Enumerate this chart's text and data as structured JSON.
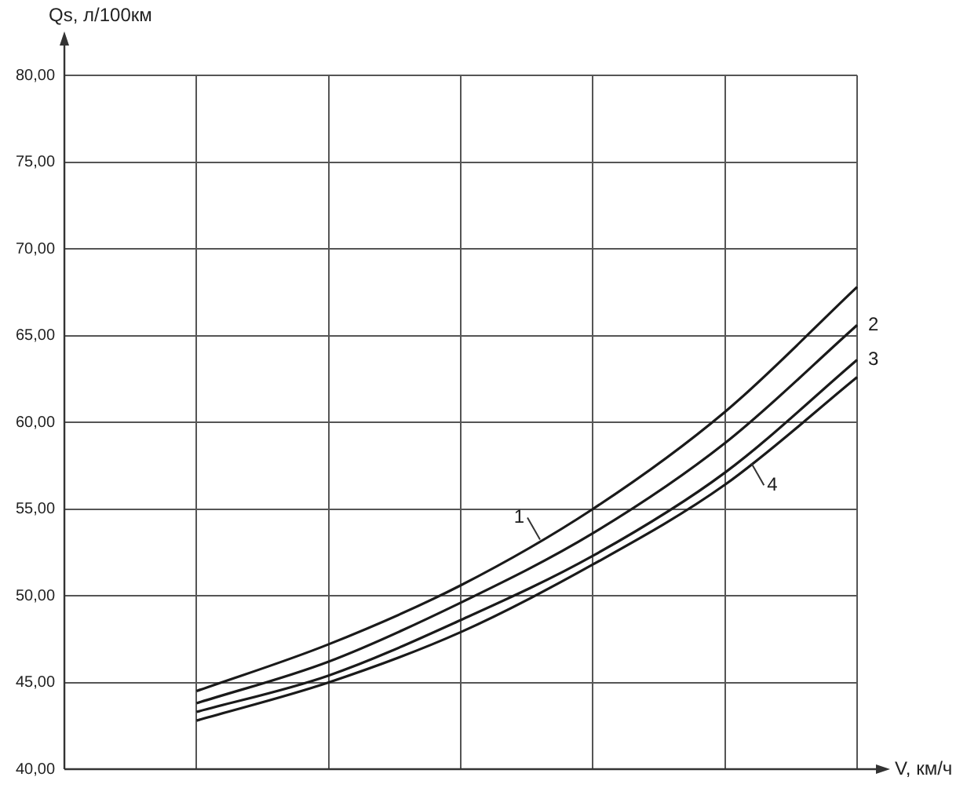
{
  "chart_data": {
    "type": "line",
    "xlabel": "V, км/ч",
    "ylabel": "Qs, л/100км",
    "categories": [
      null,
      null,
      null,
      null,
      null,
      null,
      null
    ],
    "series": [
      {
        "name": "1",
        "color": "#1a1a1a",
        "values": [
          null,
          44.5,
          47.2,
          50.6,
          55.0,
          60.6,
          67.8
        ]
      },
      {
        "name": "2",
        "color": "#1a1a1a",
        "values": [
          null,
          43.8,
          46.2,
          49.6,
          53.6,
          58.8,
          65.6
        ]
      },
      {
        "name": "3",
        "color": "#1a1a1a",
        "values": [
          null,
          43.3,
          45.4,
          48.6,
          52.3,
          57.1,
          63.6
        ]
      },
      {
        "name": "4",
        "color": "#1a1a1a",
        "values": [
          null,
          42.8,
          45.0,
          47.9,
          51.8,
          56.4,
          62.6
        ]
      }
    ],
    "ylim": [
      40,
      80
    ],
    "yticks": [
      {
        "value": 40,
        "label": "40,00"
      },
      {
        "value": 45,
        "label": "45,00"
      },
      {
        "value": 50,
        "label": "50,00"
      },
      {
        "value": 55,
        "label": "55,00"
      },
      {
        "value": 60,
        "label": "60,00"
      },
      {
        "value": 65,
        "label": "65,00"
      },
      {
        "value": 70,
        "label": "70,00"
      },
      {
        "value": 75,
        "label": "75,00"
      },
      {
        "value": 80,
        "label": "80,00"
      }
    ],
    "grid": true,
    "legend": false,
    "tick_labels": "y",
    "marker": "none",
    "line_style": "solid"
  }
}
